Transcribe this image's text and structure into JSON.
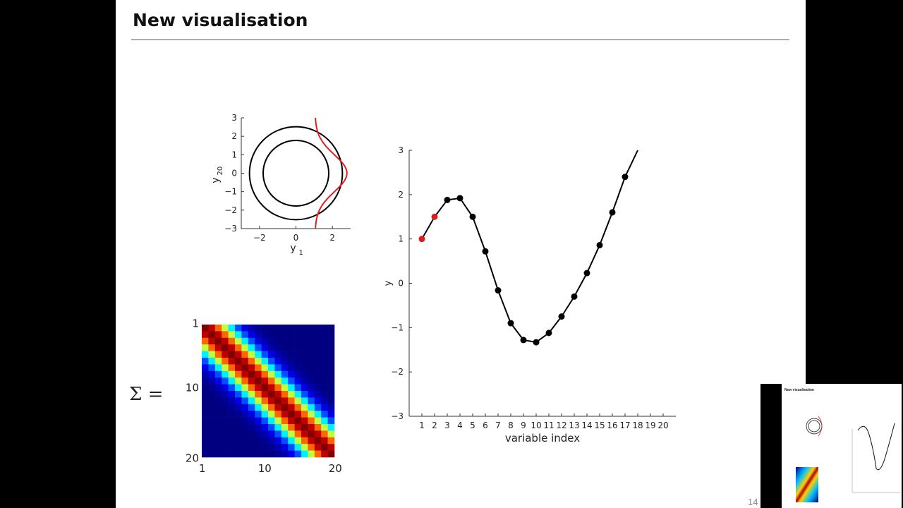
{
  "slide": {
    "title": "New visualisation",
    "sigma_label": "Σ =",
    "slide_number": "14"
  },
  "thumbnail": {
    "title": "New visualisation"
  },
  "chart_data": [
    {
      "type": "scatter",
      "title": "",
      "xlabel": "y",
      "xlabel_sub": "1",
      "ylabel": "y",
      "ylabel_sub": "20",
      "xlim": [
        -3,
        3
      ],
      "ylim": [
        -3,
        3
      ],
      "xticks": [
        -2,
        0,
        2
      ],
      "yticks": [
        3,
        2,
        1,
        0,
        -1,
        -2,
        -3
      ],
      "xtick_labels": [
        "−2",
        "0",
        "2"
      ],
      "ytick_labels": [
        "3",
        "2",
        "1",
        "0",
        "−1",
        "−2",
        "−3"
      ],
      "contours": [
        {
          "name": "contour inner",
          "radius": 1.8
        },
        {
          "name": "contour outer",
          "radius": 2.55
        }
      ],
      "marginal": {
        "baseline_x": 1.05,
        "peak_x": 2.8,
        "sigma": 1.0,
        "color": "#e02020"
      }
    },
    {
      "type": "heatmap",
      "title": "",
      "size": 20,
      "colormap": "jet",
      "length_scale": 2.8,
      "xticks": [
        1,
        10,
        20
      ],
      "yticks": [
        1,
        10,
        20
      ],
      "xtick_labels": [
        "1",
        "10",
        "20"
      ],
      "ytick_labels": [
        "1",
        "10",
        "20"
      ]
    },
    {
      "type": "line",
      "title": "",
      "xlabel": "variable index",
      "ylabel": "y",
      "xlim": [
        0,
        21
      ],
      "ylim": [
        -3,
        3
      ],
      "xtick_labels": [
        "1",
        "2",
        "3",
        "4",
        "5",
        "6",
        "7",
        "8",
        "9",
        "10",
        "11",
        "12",
        "13",
        "14",
        "15",
        "16",
        "17",
        "18",
        "19",
        "20"
      ],
      "ytick_labels": [
        "3",
        "2",
        "1",
        "0",
        "−1",
        "−2",
        "−3"
      ],
      "yticks": [
        3,
        2,
        1,
        0,
        -1,
        -2,
        -3
      ],
      "points": [
        {
          "x": 1,
          "y": 1.0,
          "color": "#d42020"
        },
        {
          "x": 2,
          "y": 1.5,
          "color": "#d42020"
        },
        {
          "x": 3,
          "y": 1.88,
          "color": "#000000"
        },
        {
          "x": 4,
          "y": 1.92,
          "color": "#000000"
        },
        {
          "x": 5,
          "y": 1.5,
          "color": "#000000"
        },
        {
          "x": 6,
          "y": 0.72,
          "color": "#000000"
        },
        {
          "x": 7,
          "y": -0.16,
          "color": "#000000"
        },
        {
          "x": 8,
          "y": -0.9,
          "color": "#000000"
        },
        {
          "x": 9,
          "y": -1.28,
          "color": "#000000"
        },
        {
          "x": 10,
          "y": -1.33,
          "color": "#000000"
        },
        {
          "x": 11,
          "y": -1.12,
          "color": "#000000"
        },
        {
          "x": 12,
          "y": -0.75,
          "color": "#000000"
        },
        {
          "x": 13,
          "y": -0.3,
          "color": "#000000"
        },
        {
          "x": 14,
          "y": 0.23,
          "color": "#000000"
        },
        {
          "x": 15,
          "y": 0.86,
          "color": "#000000"
        },
        {
          "x": 16,
          "y": 1.6,
          "color": "#000000"
        },
        {
          "x": 17,
          "y": 2.4,
          "color": "#000000"
        }
      ],
      "line_end": {
        "x": 18,
        "y": 3.0
      }
    }
  ]
}
